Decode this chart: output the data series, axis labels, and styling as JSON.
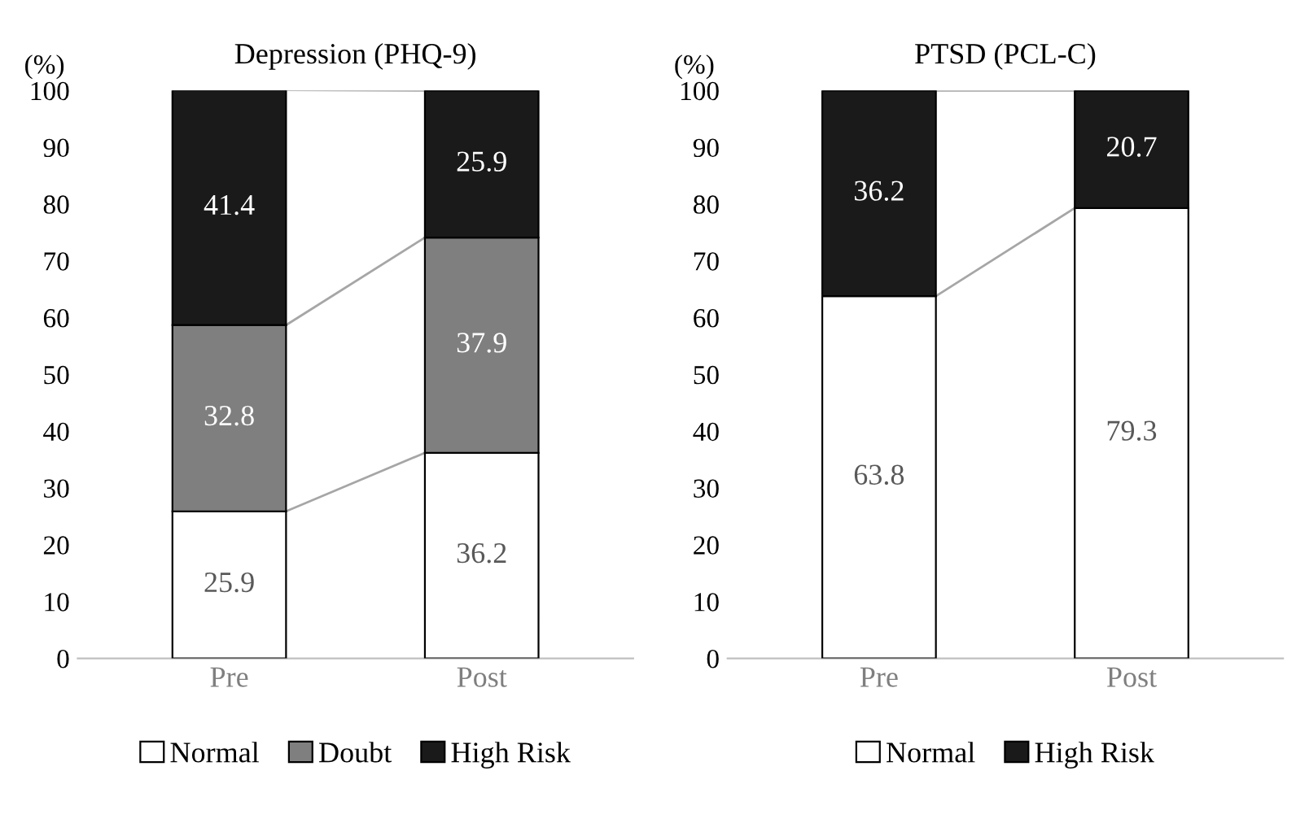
{
  "chart_data": [
    {
      "type": "bar",
      "title": "Depression (PHQ-9)",
      "ylabel": "(%)",
      "categories": [
        "Pre",
        "Post"
      ],
      "stacked": true,
      "data_labels": true,
      "legend": "bottom",
      "grid": false,
      "ylim": [
        0,
        100
      ],
      "yticks": [
        0,
        10,
        20,
        30,
        40,
        50,
        60,
        70,
        80,
        90,
        100
      ],
      "series": [
        {
          "name": "Normal",
          "color": "#ffffff",
          "values": [
            25.9,
            36.2
          ]
        },
        {
          "name": "Doubt",
          "color": "#7f7f7f",
          "values": [
            32.8,
            37.9
          ]
        },
        {
          "name": "High Risk",
          "color": "#1a1a1a",
          "values": [
            41.4,
            25.9
          ]
        }
      ]
    },
    {
      "type": "bar",
      "title": "PTSD (PCL-C)",
      "ylabel": "(%)",
      "categories": [
        "Pre",
        "Post"
      ],
      "stacked": true,
      "data_labels": true,
      "legend": "bottom",
      "grid": false,
      "ylim": [
        0,
        100
      ],
      "yticks": [
        0,
        10,
        20,
        30,
        40,
        50,
        60,
        70,
        80,
        90,
        100
      ],
      "series": [
        {
          "name": "Normal",
          "color": "#ffffff",
          "values": [
            63.8,
            79.3
          ]
        },
        {
          "name": "High Risk",
          "color": "#1a1a1a",
          "values": [
            36.2,
            20.7
          ]
        }
      ]
    }
  ]
}
